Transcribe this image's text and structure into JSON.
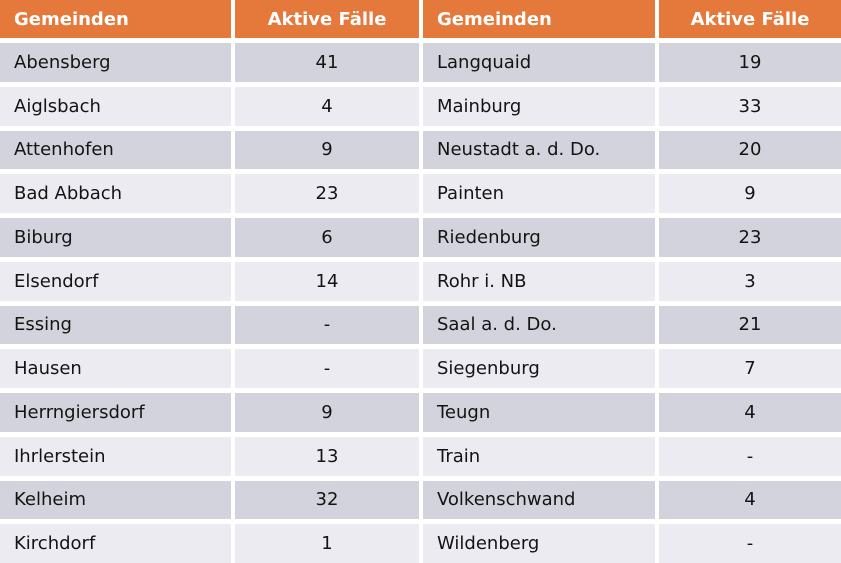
{
  "colors": {
    "header_bg": "#E5793B",
    "header_text": "#FFFFFF",
    "row_dark": "#D2D3DC",
    "row_light": "#EBEBF1",
    "gap": "#FFFFFF",
    "body_text": "#141414"
  },
  "headers": [
    "Gemeinden",
    "Aktive Fälle",
    "Gemeinden",
    "Aktive Fälle"
  ],
  "rows": [
    [
      "Abensberg",
      "41",
      "Langquaid",
      "19"
    ],
    [
      "Aiglsbach",
      "4",
      "Mainburg",
      "33"
    ],
    [
      "Attenhofen",
      "9",
      "Neustadt a. d. Do.",
      "20"
    ],
    [
      "Bad Abbach",
      "23",
      "Painten",
      "9"
    ],
    [
      "Biburg",
      "6",
      "Riedenburg",
      "23"
    ],
    [
      "Elsendorf",
      "14",
      "Rohr i. NB",
      "3"
    ],
    [
      "Essing",
      "-",
      "Saal a. d. Do.",
      "21"
    ],
    [
      "Hausen",
      "-",
      "Siegenburg",
      "7"
    ],
    [
      "Herrngiersdorf",
      "9",
      "Teugn",
      "4"
    ],
    [
      "Ihrlerstein",
      "13",
      "Train",
      "-"
    ],
    [
      "Kelheim",
      "32",
      "Volkenschwand",
      "4"
    ],
    [
      "Kirchdorf",
      "1",
      "Wildenberg",
      "-"
    ]
  ],
  "chart_data": {
    "type": "table",
    "columns": [
      "Gemeinden",
      "Aktive Fälle"
    ],
    "rows": [
      [
        "Abensberg",
        41
      ],
      [
        "Aiglsbach",
        4
      ],
      [
        "Attenhofen",
        9
      ],
      [
        "Bad Abbach",
        23
      ],
      [
        "Biburg",
        6
      ],
      [
        "Elsendorf",
        14
      ],
      [
        "Essing",
        null
      ],
      [
        "Hausen",
        null
      ],
      [
        "Herrngiersdorf",
        9
      ],
      [
        "Ihrlerstein",
        13
      ],
      [
        "Kelheim",
        32
      ],
      [
        "Kirchdorf",
        1
      ],
      [
        "Langquaid",
        19
      ],
      [
        "Mainburg",
        33
      ],
      [
        "Neustadt a. d. Do.",
        20
      ],
      [
        "Painten",
        9
      ],
      [
        "Riedenburg",
        23
      ],
      [
        "Rohr i. NB",
        3
      ],
      [
        "Saal a. d. Do.",
        21
      ],
      [
        "Siegenburg",
        7
      ],
      [
        "Teugn",
        4
      ],
      [
        "Train",
        null
      ],
      [
        "Volkenschwand",
        4
      ],
      [
        "Wildenberg",
        null
      ]
    ],
    "notes": "Dash (-) in the image means no active cases shown; two side-by-side Gemeinden/Aktive Fälle column pairs; orange header row; alternating gray banded rows"
  }
}
